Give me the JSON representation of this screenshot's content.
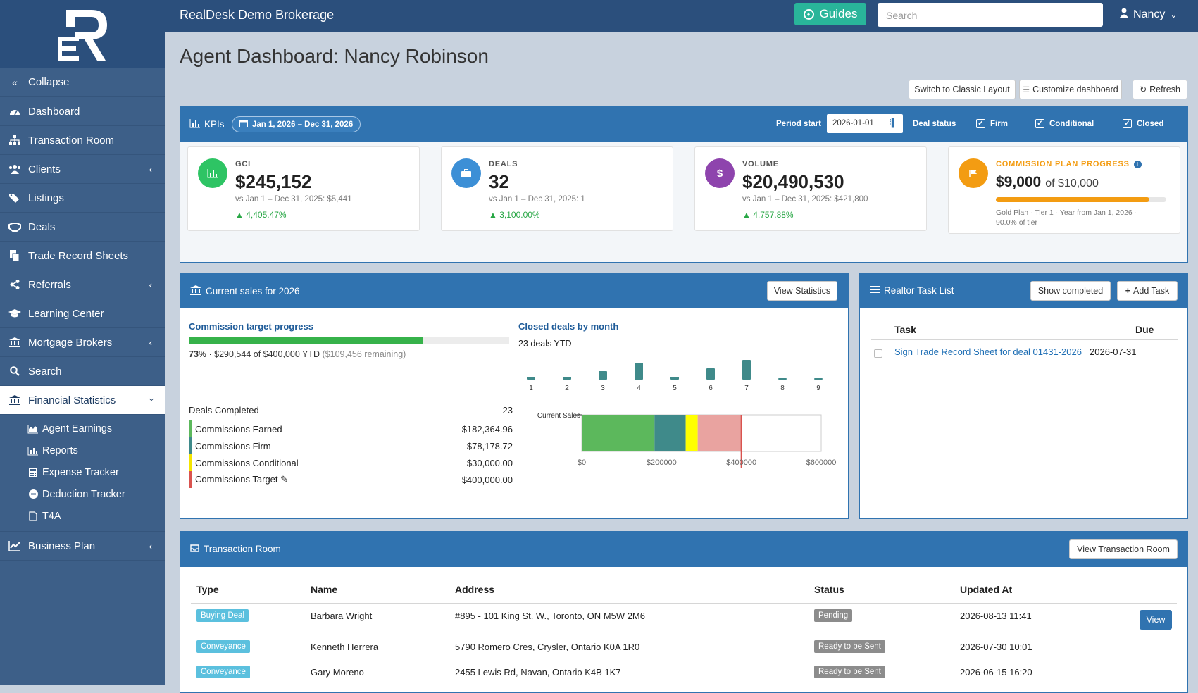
{
  "app": {
    "brand": "RealDesk Demo Brokerage",
    "guides_label": "Guides",
    "search_placeholder": "Search",
    "user_name": "Nancy"
  },
  "sidebar": {
    "collapse": "Collapse",
    "items": [
      {
        "label": "Dashboard",
        "icon": "dashboard-icon"
      },
      {
        "label": "Transaction Room",
        "icon": "sitemap-icon"
      },
      {
        "label": "Clients",
        "icon": "users-icon"
      },
      {
        "label": "Listings",
        "icon": "tags-icon"
      },
      {
        "label": "Deals",
        "icon": "handshake-icon"
      },
      {
        "label": "Trade Record Sheets",
        "icon": "copy-icon"
      },
      {
        "label": "Referrals",
        "icon": "share-icon"
      },
      {
        "label": "Learning Center",
        "icon": "graduation-cap-icon"
      },
      {
        "label": "Mortgage Brokers",
        "icon": "bank-icon"
      },
      {
        "label": "Search",
        "icon": "search-icon"
      },
      {
        "label": "Financial Statistics",
        "icon": "bank-icon"
      }
    ],
    "sub_items": [
      {
        "label": "Agent Earnings",
        "icon": "area-chart-icon"
      },
      {
        "label": "Reports",
        "icon": "bar-chart-icon"
      },
      {
        "label": "Expense Tracker",
        "icon": "calculator-icon"
      },
      {
        "label": "Deduction Tracker",
        "icon": "minus-circle-icon"
      },
      {
        "label": "T4A",
        "icon": "file-icon"
      }
    ],
    "business_plan": "Business Plan"
  },
  "page": {
    "title": "Agent Dashboard: Nancy Robinson",
    "switch_label": "Switch to Classic Layout",
    "customize_label": "Customize dashboard",
    "refresh_label": "Refresh"
  },
  "kpis": {
    "title": "KPIs",
    "range": "Jan 1, 2026 – Dec 31, 2026",
    "period_label": "Period start",
    "period_value": "2026-01-01",
    "deal_status_label": "Deal status",
    "statuses": [
      "Firm",
      "Conditional",
      "Closed"
    ],
    "cards": [
      {
        "label": "GCI",
        "value": "$245,152",
        "sub": "vs Jan 1 – Dec 31, 2025: $5,441",
        "delta": "▲ 4,405.47%",
        "color": "#2ec464"
      },
      {
        "label": "DEALS",
        "value": "32",
        "sub": "vs Jan 1 – Dec 31, 2025: 1",
        "delta": "▲ 3,100.00%",
        "color": "#3c8fd6"
      },
      {
        "label": "VOLUME",
        "value": "$20,490,530",
        "sub": "vs Jan 1 – Dec 31, 2025: $421,800",
        "delta": "▲ 4,757.88%",
        "color": "#8e44ad"
      }
    ],
    "commission": {
      "label": "COMMISSION PLAN PROGRESS",
      "value": "$9,000",
      "of": "of $10,000",
      "progress": 0.9,
      "detail1": "Gold Plan · Tier 1 · Year from Jan 1, 2026 ·",
      "detail2": "90.0% of tier",
      "color": "#f39c12"
    }
  },
  "sales": {
    "title": "Current sales for 2026",
    "view_label": "View Statistics",
    "target_title": "Commission target progress",
    "target_progress": 0.73,
    "target_pct": "73%",
    "target_text": " · $290,544 of $400,000 YTD ",
    "target_remaining": "($109,456 remaining)",
    "closed_title": "Closed deals by month",
    "closed_ytd": "23 deals YTD",
    "stats": [
      {
        "label": "Deals Completed",
        "value": "23",
        "color": ""
      },
      {
        "label": "Commissions Earned",
        "value": "$182,364.96",
        "color": "#5cb85c"
      },
      {
        "label": "Commissions Firm",
        "value": "$78,178.72",
        "color": "#3f8a8a"
      },
      {
        "label": "Commissions Conditional",
        "value": "$30,000.00",
        "color": "#f4e400"
      },
      {
        "label": "Commissions Target",
        "value": "$400,000.00",
        "color": "#d9534f"
      }
    ]
  },
  "chart_data": [
    {
      "type": "bar",
      "title": "Closed deals by month",
      "categories": [
        "1",
        "2",
        "3",
        "4",
        "5",
        "6",
        "7",
        "8",
        "9"
      ],
      "values": [
        1,
        1,
        3,
        6,
        1,
        4,
        7,
        0.5,
        0.5
      ],
      "color": "#3f8a8a"
    },
    {
      "type": "bar",
      "ylabel": "Current Sales",
      "xlim": [
        0,
        600000
      ],
      "ticks": [
        "$0",
        "$200000",
        "$400000",
        "$600000"
      ],
      "series": [
        {
          "name": "Commissions Earned",
          "values": [
            182364.96
          ],
          "color": "#5cb85c"
        },
        {
          "name": "Commissions Firm",
          "values": [
            78178.72
          ],
          "color": "#3f8a8a"
        },
        {
          "name": "Commissions Conditional",
          "values": [
            30000
          ],
          "color": "#ffff00"
        },
        {
          "name": "Remaining",
          "values": [
            109456
          ],
          "color": "#e9a3a0"
        }
      ],
      "target": 400000
    }
  ],
  "tasks": {
    "title": "Realtor Task List",
    "show_completed": "Show completed",
    "add_task": "Add Task",
    "col_task": "Task",
    "col_due": "Due",
    "items": [
      {
        "task": "Sign Trade Record Sheet for deal 01431-2026",
        "due": "2026-07-31"
      }
    ]
  },
  "transactions": {
    "title": "Transaction Room",
    "view_label": "View Transaction Room",
    "columns": [
      "Type",
      "Name",
      "Address",
      "Status",
      "Updated At"
    ],
    "rows": [
      {
        "type": "Buying Deal",
        "name": "Barbara Wright",
        "address": "#895 - 101 King St. W., Toronto, ON M5W 2M6",
        "status": "Pending",
        "updated": "2026-08-13 11:41",
        "action": "View"
      },
      {
        "type": "Conveyance",
        "name": "Kenneth Herrera",
        "address": "5790 Romero Cres, Crysler, Ontario K0A 1R0",
        "status": "Ready to be Sent",
        "updated": "2026-07-30 10:01"
      },
      {
        "type": "Conveyance",
        "name": "Gary Moreno",
        "address": "2455 Lewis Rd, Navan, Ontario K4B 1K7",
        "status": "Ready to be Sent",
        "updated": "2026-06-15 16:20"
      }
    ]
  }
}
